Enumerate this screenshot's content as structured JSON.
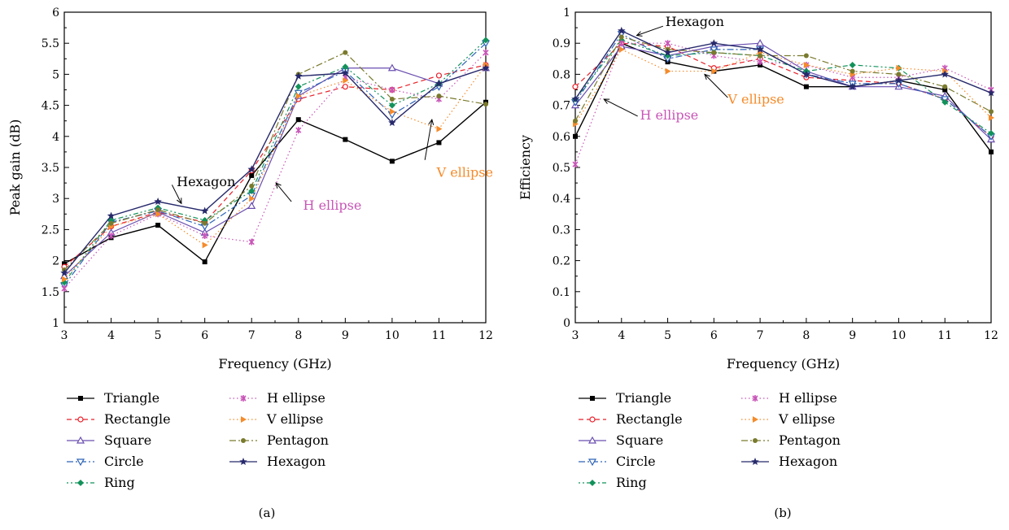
{
  "series_styles": [
    {
      "name": "Triangle",
      "color": "#000000",
      "dash": "",
      "marker": "square"
    },
    {
      "name": "Rectangle",
      "color": "#e8202a",
      "dash": "6,4",
      "marker": "circle"
    },
    {
      "name": "Square",
      "color": "#6a4fb0",
      "dash": "",
      "marker": "triangle-up"
    },
    {
      "name": "Circle",
      "color": "#2e63b8",
      "dash": "8,3,2,3",
      "marker": "triangle-down"
    },
    {
      "name": "Ring",
      "color": "#12925a",
      "dash": "2,3,2,3,6,3",
      "marker": "diamond"
    },
    {
      "name": "H ellipse",
      "color": "#c855b7",
      "dash": "1.5,3",
      "marker": "x"
    },
    {
      "name": "V ellipse",
      "color": "#f58b2a",
      "dash": "1.5,3",
      "marker": "triangle-right"
    },
    {
      "name": "Pentagon",
      "color": "#7a7a2e",
      "dash": "8,3,2,3",
      "marker": "circle-filled"
    },
    {
      "name": "Hexagon",
      "color": "#26296b",
      "dash": "",
      "marker": "star"
    }
  ],
  "chart_data": [
    {
      "type": "line",
      "caption": "(a)",
      "xlabel": "Frequency (GHz)",
      "ylabel": "Peak gain (dB)",
      "xlim": [
        3,
        12
      ],
      "ylim": [
        1,
        6
      ],
      "xticks": [
        3,
        4,
        5,
        6,
        7,
        8,
        9,
        10,
        11,
        12
      ],
      "yticks": [
        1,
        1.5,
        2,
        2.5,
        3,
        3.5,
        4,
        4.5,
        5,
        5.5,
        6
      ],
      "ytick_labels": [
        "1",
        "1.5",
        "2",
        "2.5",
        "3",
        "3.5",
        "4",
        "4.5",
        "5",
        "5.5",
        "6"
      ],
      "x": [
        3,
        4,
        5,
        6,
        7,
        8,
        9,
        10,
        11,
        12
      ],
      "series": [
        {
          "name": "Triangle",
          "values": [
            1.95,
            2.37,
            2.57,
            1.98,
            3.37,
            4.27,
            3.95,
            3.6,
            3.9,
            4.55
          ]
        },
        {
          "name": "Rectangle",
          "values": [
            1.9,
            2.55,
            2.78,
            2.62,
            3.45,
            4.6,
            4.8,
            4.75,
            4.98,
            5.15
          ]
        },
        {
          "name": "Square",
          "values": [
            1.75,
            2.45,
            2.78,
            2.45,
            2.88,
            4.65,
            5.1,
            5.1,
            4.85,
            5.1
          ]
        },
        {
          "name": "Circle",
          "values": [
            1.6,
            2.62,
            2.8,
            2.55,
            3.05,
            4.7,
            5.05,
            4.35,
            4.8,
            5.5
          ]
        },
        {
          "name": "Ring",
          "values": [
            1.65,
            2.65,
            2.85,
            2.65,
            3.12,
            4.8,
            5.12,
            4.5,
            4.85,
            5.55
          ]
        },
        {
          "name": "H ellipse",
          "values": [
            1.55,
            2.4,
            2.75,
            2.4,
            2.3,
            4.1,
            4.95,
            4.75,
            4.6,
            5.35
          ]
        },
        {
          "name": "V ellipse",
          "values": [
            1.7,
            2.55,
            2.75,
            2.25,
            3.0,
            4.65,
            4.9,
            4.4,
            4.12,
            5.15
          ]
        },
        {
          "name": "Pentagon",
          "values": [
            1.85,
            2.6,
            2.82,
            2.6,
            3.2,
            5.0,
            5.35,
            4.6,
            4.65,
            4.52
          ]
        },
        {
          "name": "Hexagon",
          "values": [
            1.8,
            2.72,
            2.95,
            2.8,
            3.47,
            4.97,
            5.02,
            4.22,
            4.85,
            5.1
          ]
        }
      ],
      "annotations": [
        {
          "text": "Hexagon",
          "color": "#000000",
          "tx": 5.4,
          "ty": 3.2,
          "ax": 5.3,
          "ay": 3.22,
          "px": 5.5,
          "py": 2.92
        },
        {
          "text": "H ellipse",
          "color": "#c855b7",
          "tx": 8.1,
          "ty": 2.82,
          "ax": 7.85,
          "ay": 2.95,
          "px": 7.52,
          "py": 3.25
        },
        {
          "text": "V ellipse",
          "color": "#f58b2a",
          "tx": 10.95,
          "ty": 3.35,
          "ax": 10.7,
          "ay": 3.62,
          "px": 10.85,
          "py": 4.27
        }
      ]
    },
    {
      "type": "line",
      "caption": "(b)",
      "xlabel": "Frequency (GHz)",
      "ylabel": "Efficiency",
      "xlim": [
        3,
        12
      ],
      "ylim": [
        0,
        1
      ],
      "xticks": [
        3,
        4,
        5,
        6,
        7,
        8,
        9,
        10,
        11,
        12
      ],
      "yticks": [
        0,
        0.1,
        0.2,
        0.3,
        0.4,
        0.5,
        0.6,
        0.7,
        0.8,
        0.9,
        1
      ],
      "ytick_labels": [
        "0",
        "0.1",
        "0.2",
        "0.3",
        "0.4",
        "0.5",
        "0.6",
        "0.7",
        "0.8",
        "0.9",
        "1"
      ],
      "x": [
        3,
        4,
        5,
        6,
        7,
        8,
        9,
        10,
        11,
        12
      ],
      "series": [
        {
          "name": "Triangle",
          "values": [
            0.6,
            0.9,
            0.84,
            0.81,
            0.83,
            0.76,
            0.76,
            0.78,
            0.75,
            0.55
          ]
        },
        {
          "name": "Rectangle",
          "values": [
            0.76,
            0.9,
            0.89,
            0.82,
            0.85,
            0.79,
            0.78,
            0.77,
            0.72,
            0.6
          ]
        },
        {
          "name": "Square",
          "values": [
            0.7,
            0.89,
            0.86,
            0.89,
            0.9,
            0.81,
            0.76,
            0.76,
            0.73,
            0.59
          ]
        },
        {
          "name": "Circle",
          "values": [
            0.71,
            0.93,
            0.85,
            0.88,
            0.88,
            0.8,
            0.77,
            0.77,
            0.72,
            0.6
          ]
        },
        {
          "name": "Ring",
          "values": [
            0.72,
            0.91,
            0.86,
            0.87,
            0.86,
            0.81,
            0.83,
            0.82,
            0.71,
            0.61
          ]
        },
        {
          "name": "H ellipse",
          "values": [
            0.51,
            0.9,
            0.9,
            0.86,
            0.84,
            0.83,
            0.79,
            0.79,
            0.82,
            0.75
          ]
        },
        {
          "name": "V ellipse",
          "values": [
            0.64,
            0.88,
            0.81,
            0.81,
            0.87,
            0.83,
            0.8,
            0.82,
            0.81,
            0.66
          ]
        },
        {
          "name": "Pentagon",
          "values": [
            0.65,
            0.92,
            0.88,
            0.87,
            0.86,
            0.86,
            0.81,
            0.8,
            0.76,
            0.68
          ]
        },
        {
          "name": "Hexagon",
          "values": [
            0.72,
            0.94,
            0.87,
            0.9,
            0.88,
            0.8,
            0.76,
            0.78,
            0.8,
            0.74
          ]
        }
      ],
      "annotations": [
        {
          "text": "Hexagon",
          "color": "#000000",
          "tx": 4.95,
          "ty": 0.955,
          "ax": 4.9,
          "ay": 0.955,
          "px": 4.33,
          "py": 0.925
        },
        {
          "text": "H ellipse",
          "color": "#c855b7",
          "tx": 4.4,
          "ty": 0.655,
          "ax": 4.35,
          "ay": 0.665,
          "px": 3.62,
          "py": 0.72
        },
        {
          "text": "V ellipse",
          "color": "#f58b2a",
          "tx": 6.3,
          "ty": 0.705,
          "ax": 6.3,
          "ay": 0.725,
          "px": 5.8,
          "py": 0.8
        }
      ]
    }
  ]
}
